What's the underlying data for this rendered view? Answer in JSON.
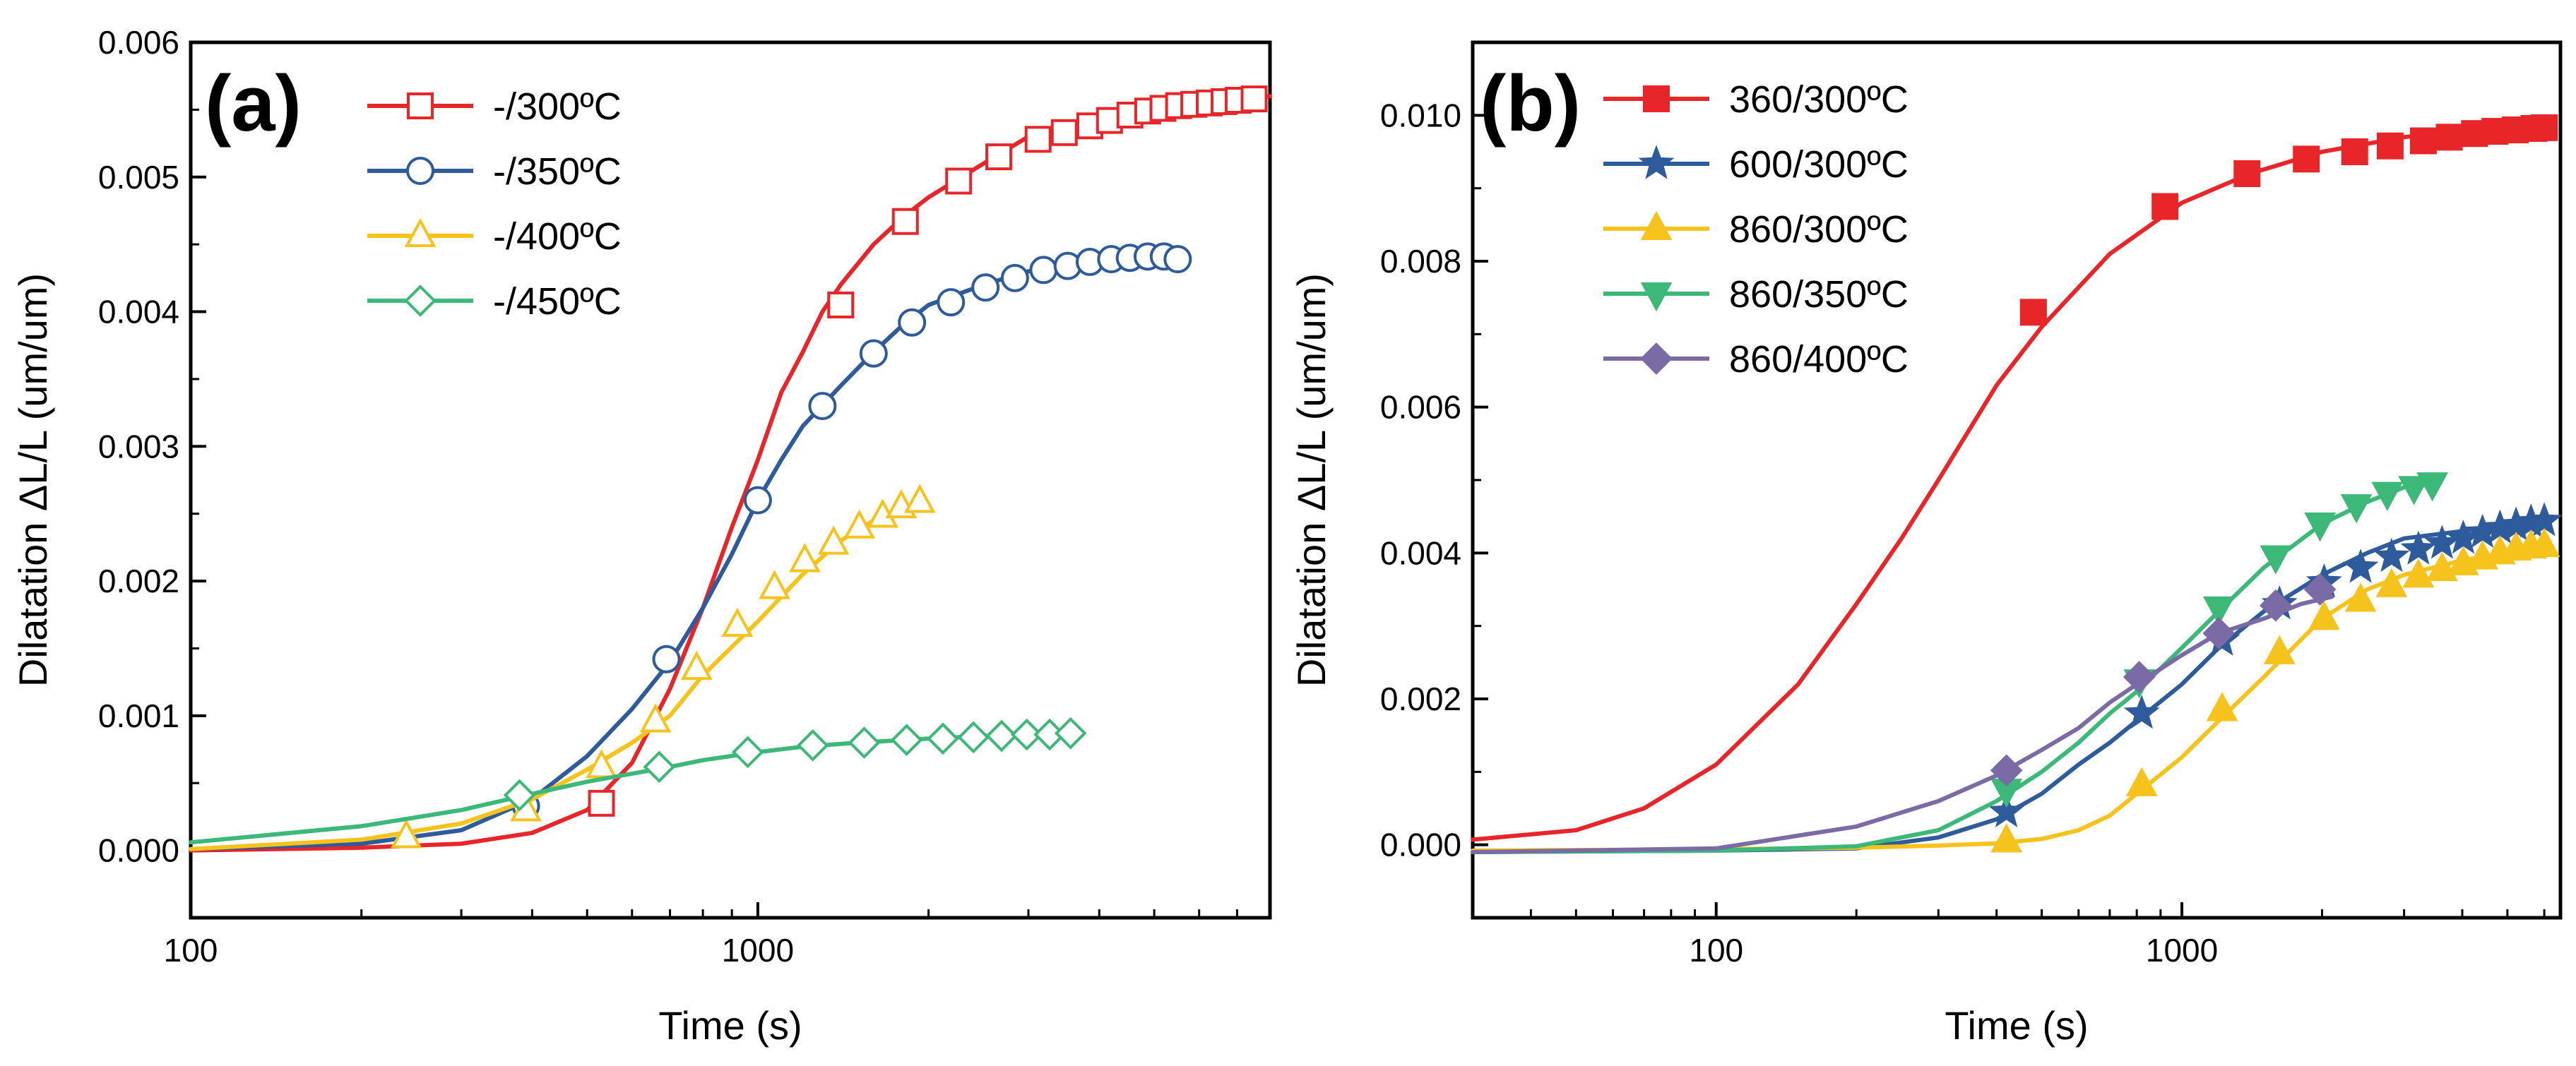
{
  "chart_data": [
    {
      "type": "line",
      "panel_label": "(a)",
      "xlabel": "Time (s)",
      "ylabel": "Dilatation ΔL/L (um/um)",
      "xscale": "log",
      "xlim": [
        100,
        8000
      ],
      "ylim": [
        -0.0005,
        0.006
      ],
      "x_ticks": [
        100,
        1000
      ],
      "x_tick_labels": [
        "100",
        "1000"
      ],
      "y_ticks": [
        0,
        0.001,
        0.002,
        0.003,
        0.004,
        0.005,
        0.006
      ],
      "y_tick_labels": [
        "0.000",
        "0.001",
        "0.002",
        "0.003",
        "0.004",
        "0.005",
        "0.006"
      ],
      "legend_position": "top-left",
      "series": [
        {
          "name": "-/300ºC",
          "color": "#e8262a",
          "marker": "square-open",
          "x": [
            100,
            200,
            300,
            400,
            500,
            600,
            700,
            800,
            900,
            1000,
            1100,
            1200,
            1300,
            1400,
            1600,
            1800,
            2000,
            2500,
            3000,
            3500,
            4000,
            5000,
            6000,
            7000,
            8000
          ],
          "y": [
            0,
            2e-05,
            5e-05,
            0.00013,
            0.0003,
            0.00065,
            0.0012,
            0.0018,
            0.0024,
            0.0029,
            0.0034,
            0.0037,
            0.004,
            0.0042,
            0.0045,
            0.0047,
            0.00485,
            0.0051,
            0.0053,
            0.00538,
            0.00543,
            0.0055,
            0.00553,
            0.00556,
            0.0056
          ],
          "marker_x": [
            530,
            1400,
            1820,
            2260,
            2660,
            3120,
            3470,
            3850,
            4170,
            4530,
            4870,
            5180,
            5520,
            5870,
            6250,
            6640,
            7030,
            7500
          ],
          "marker_y": [
            0.00035,
            0.00405,
            0.00467,
            0.00497,
            0.00515,
            0.00528,
            0.00533,
            0.00538,
            0.00542,
            0.00546,
            0.00549,
            0.00551,
            0.00553,
            0.00554,
            0.00555,
            0.00556,
            0.00557,
            0.00558
          ]
        },
        {
          "name": "-/350ºC",
          "color": "#2d5b9c",
          "marker": "circle-open",
          "x": [
            100,
            200,
            300,
            400,
            500,
            600,
            700,
            800,
            900,
            1000,
            1100,
            1200,
            1400,
            1600,
            1800,
            2000,
            2500,
            3000,
            3500,
            4000,
            4500,
            5000,
            5500
          ],
          "y": [
            1e-05,
            5e-05,
            0.00015,
            0.00038,
            0.0007,
            0.00105,
            0.0014,
            0.0018,
            0.0022,
            0.0026,
            0.0029,
            0.00315,
            0.00345,
            0.0037,
            0.0039,
            0.00405,
            0.0042,
            0.0043,
            0.00435,
            0.00438,
            0.0044,
            0.0044,
            0.00438
          ],
          "marker_x": [
            390,
            690,
            1000,
            1300,
            1600,
            1870,
            2190,
            2520,
            2840,
            3190,
            3520,
            3850,
            4200,
            4530,
            4870,
            5200,
            5500
          ],
          "marker_y": [
            0.00033,
            0.00142,
            0.0026,
            0.0033,
            0.00369,
            0.00392,
            0.00407,
            0.00418,
            0.00425,
            0.00431,
            0.00434,
            0.00437,
            0.00439,
            0.0044,
            0.00441,
            0.00441,
            0.00439
          ]
        },
        {
          "name": "-/400ºC",
          "color": "#f6c21c",
          "marker": "triangle-open",
          "x": [
            100,
            200,
            300,
            400,
            500,
            600,
            700,
            800,
            1000,
            1200,
            1400,
            1600,
            1800,
            1950
          ],
          "y": [
            1e-05,
            8e-05,
            0.0002,
            0.00038,
            0.0006,
            0.0008,
            0.001,
            0.0013,
            0.0017,
            0.00205,
            0.0023,
            0.00245,
            0.00255,
            0.00258
          ],
          "marker_x": [
            240,
            390,
            530,
            660,
            780,
            920,
            1070,
            1210,
            1360,
            1510,
            1660,
            1790,
            1930
          ],
          "marker_y": [
            0.0001,
            0.0003,
            0.00062,
            0.00096,
            0.00135,
            0.00167,
            0.00195,
            0.00215,
            0.00228,
            0.0024,
            0.00248,
            0.00255,
            0.00259
          ]
        },
        {
          "name": "-/450ºC",
          "color": "#3cb878",
          "marker": "diamond-open",
          "x": [
            100,
            200,
            300,
            400,
            500,
            600,
            700,
            800,
            1000,
            1200,
            1500,
            2000,
            2500,
            3000,
            3700
          ],
          "y": [
            6e-05,
            0.00018,
            0.0003,
            0.00042,
            0.00051,
            0.00057,
            0.00062,
            0.00067,
            0.00073,
            0.00077,
            0.0008,
            0.00083,
            0.00085,
            0.00086,
            0.00087
          ],
          "marker_x": [
            380,
            670,
            960,
            1250,
            1540,
            1830,
            2120,
            2400,
            2690,
            2980,
            3270,
            3560
          ],
          "marker_y": [
            0.00041,
            0.00062,
            0.00073,
            0.00078,
            0.0008,
            0.00082,
            0.00083,
            0.00084,
            0.00085,
            0.00086,
            0.00086,
            0.00087
          ]
        }
      ]
    },
    {
      "type": "line",
      "panel_label": "(b)",
      "xlabel": "Time (s)",
      "ylabel": "Dilatation ΔL/L (um/um)",
      "xscale": "log",
      "xlim": [
        30,
        6500
      ],
      "ylim": [
        -0.001,
        0.011
      ],
      "x_ticks": [
        100,
        1000
      ],
      "x_tick_labels": [
        "100",
        "1000"
      ],
      "y_ticks": [
        0,
        0.002,
        0.004,
        0.006,
        0.008,
        0.01
      ],
      "y_tick_labels": [
        "0.000",
        "0.002",
        "0.004",
        "0.006",
        "0.008",
        "0.010"
      ],
      "legend_position": "top-left",
      "series": [
        {
          "name": "360/300ºC",
          "color": "#e8262a",
          "marker": "square-filled",
          "x": [
            30,
            50,
            70,
            100,
            150,
            200,
            250,
            300,
            400,
            500,
            700,
            1000,
            1400,
            2000,
            3000,
            4000,
            6000
          ],
          "y": [
            7e-05,
            0.0002,
            0.0005,
            0.0011,
            0.0022,
            0.0033,
            0.0042,
            0.005,
            0.0063,
            0.0071,
            0.0081,
            0.0088,
            0.0092,
            0.0095,
            0.0097,
            0.0098,
            0.0098
          ],
          "marker_x": [
            480,
            920,
            1380,
            1850,
            2350,
            2800,
            3300,
            3750,
            4250,
            4700,
            5200,
            5700,
            6000
          ],
          "marker_y": [
            0.0073,
            0.00875,
            0.0092,
            0.0094,
            0.0095,
            0.00958,
            0.00965,
            0.0097,
            0.00975,
            0.00978,
            0.0098,
            0.00982,
            0.00983
          ]
        },
        {
          "name": "600/300ºC",
          "color": "#2d5b9c",
          "marker": "star-filled",
          "x": [
            30,
            100,
            200,
            300,
            400,
            500,
            600,
            700,
            800,
            1000,
            1200,
            1500,
            2000,
            2500,
            3000,
            4000,
            5000,
            6000
          ],
          "y": [
            -0.0001,
            -8e-05,
            -5e-05,
            0.0001,
            0.00035,
            0.0007,
            0.0011,
            0.0014,
            0.0017,
            0.0022,
            0.0027,
            0.0032,
            0.0037,
            0.004,
            0.0042,
            0.0043,
            0.0044,
            0.00445
          ],
          "marker_x": [
            420,
            820,
            1220,
            1620,
            2020,
            2420,
            2820,
            3220,
            3620,
            4020,
            4420,
            4820,
            5220,
            5620,
            6000
          ],
          "marker_y": [
            0.00045,
            0.0018,
            0.0028,
            0.0033,
            0.0036,
            0.0038,
            0.00395,
            0.00405,
            0.00413,
            0.0042,
            0.00428,
            0.00434,
            0.00438,
            0.00442,
            0.00444
          ]
        },
        {
          "name": "860/300ºC",
          "color": "#f6c21c",
          "marker": "triangle-filled",
          "x": [
            30,
            100,
            200,
            300,
            400,
            500,
            600,
            700,
            800,
            1000,
            1200,
            1500,
            2000,
            2500,
            3000,
            4000,
            5000,
            6000
          ],
          "y": [
            -8e-05,
            -6e-05,
            -4e-05,
            -1e-05,
            2e-05,
            8e-05,
            0.0002,
            0.0004,
            0.0007,
            0.0012,
            0.0017,
            0.0023,
            0.0031,
            0.0035,
            0.0037,
            0.0039,
            0.004,
            0.0041
          ],
          "marker_x": [
            420,
            820,
            1220,
            1620,
            2020,
            2420,
            2820,
            3220,
            3620,
            4020,
            4420,
            4820,
            5220,
            5620,
            6000
          ],
          "marker_y": [
            5e-05,
            0.00082,
            0.00185,
            0.00263,
            0.0031,
            0.00335,
            0.00355,
            0.00368,
            0.00377,
            0.00385,
            0.00393,
            0.004,
            0.00405,
            0.00408,
            0.0041
          ]
        },
        {
          "name": "860/350ºC",
          "color": "#3cb878",
          "marker": "triangle-down-filled",
          "x": [
            30,
            100,
            200,
            300,
            400,
            500,
            600,
            700,
            800,
            1000,
            1200,
            1500,
            2000,
            2500,
            3000,
            3500
          ],
          "y": [
            -0.0001,
            -8e-05,
            -2e-05,
            0.0002,
            0.0006,
            0.001,
            0.0014,
            0.0018,
            0.0021,
            0.0027,
            0.0032,
            0.0038,
            0.0044,
            0.0047,
            0.0049,
            0.00495
          ],
          "marker_x": [
            420,
            810,
            1200,
            1590,
            1980,
            2370,
            2760,
            3150,
            3450
          ],
          "marker_y": [
            0.00075,
            0.00225,
            0.00325,
            0.00395,
            0.0044,
            0.00465,
            0.00482,
            0.0049,
            0.00495
          ]
        },
        {
          "name": "860/400ºC",
          "color": "#7a6aa6",
          "marker": "diamond-filled",
          "x": [
            30,
            100,
            200,
            300,
            400,
            500,
            600,
            700,
            800,
            1000,
            1200,
            1500,
            1800,
            2100
          ],
          "y": [
            -0.0001,
            -5e-05,
            0.00025,
            0.0006,
            0.00095,
            0.0013,
            0.0016,
            0.00195,
            0.0022,
            0.0026,
            0.0029,
            0.0031,
            0.0033,
            0.0034
          ],
          "marker_x": [
            420,
            810,
            1200,
            1590,
            1980
          ],
          "marker_y": [
            0.00102,
            0.0023,
            0.0029,
            0.00328,
            0.0035
          ]
        }
      ]
    }
  ]
}
